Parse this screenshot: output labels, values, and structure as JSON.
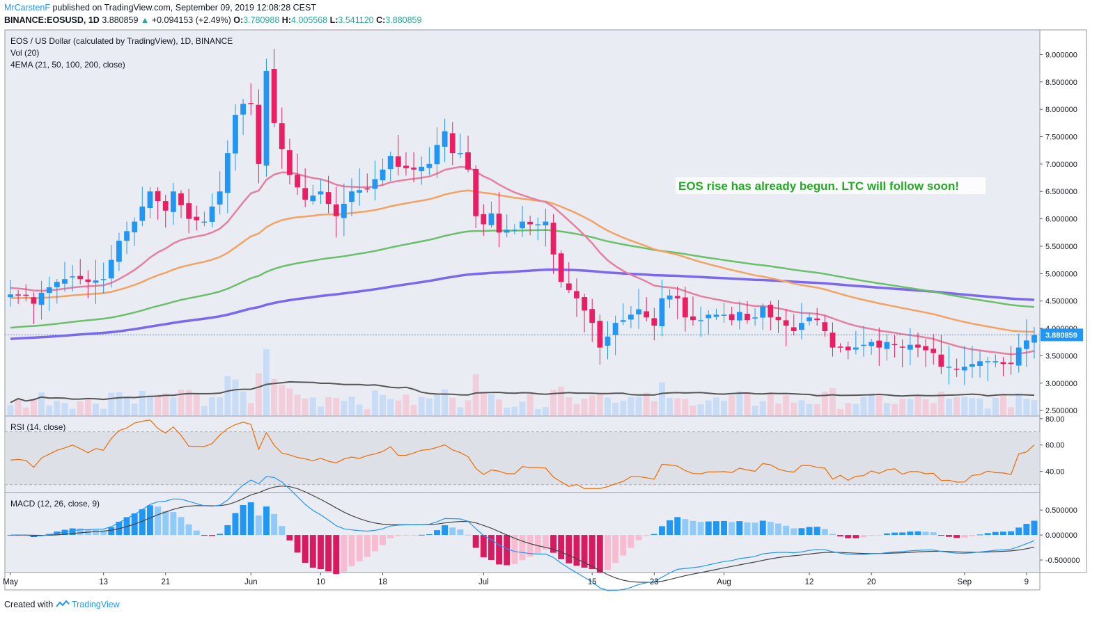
{
  "header": {
    "author": "MrCarstenF",
    "published": "published on TradingView.com, September 09, 2019 12:08:28 CEST",
    "symbol": "BINANCE:EOSUSD, 1D",
    "price": "3.880859",
    "change_arrow": "▲",
    "change": "+0.094153 (+2.49%)",
    "o_label": "O:",
    "o": "3.780988",
    "h_label": "H:",
    "h": "4.005568",
    "l_label": "L:",
    "l": "3.541120",
    "c_label": "C:",
    "c": "3.880859"
  },
  "footer": {
    "created_with": "Created with",
    "brand": "TradingView"
  },
  "colors": {
    "up": "#2196f3",
    "down": "#e91e63",
    "ema21": "#e57fa0",
    "ema50": "#f4a261",
    "ema100": "#6abf69",
    "ema200": "#7b68ee",
    "vol_ma": "#555555",
    "rsi": "#ef6c00",
    "macd": "#2196f3",
    "signal": "#444444",
    "annotation": "#22aa22",
    "pane_bg": "#e9ecf3"
  },
  "chart_data": [
    {
      "type": "candlestick",
      "title": "EOS / US Dollar (calculated by TradingView), 1D, BINANCE",
      "indicator_labels": [
        "Vol (20)",
        "4EMA (21, 50, 100, 200, close)"
      ],
      "annotation": "EOS rise has already begun. LTC will follow soon!",
      "current_price_label": "3.880859",
      "current_price": 3.880859,
      "x_ticks": [
        {
          "label": "May",
          "day": 0
        },
        {
          "label": "13",
          "day": 12
        },
        {
          "label": "21",
          "day": 20
        },
        {
          "label": "Jun",
          "day": 31
        },
        {
          "label": "10",
          "day": 40
        },
        {
          "label": "18",
          "day": 48
        },
        {
          "label": "Jul",
          "day": 61
        },
        {
          "label": "15",
          "day": 75
        },
        {
          "label": "23",
          "day": 83
        },
        {
          "label": "Aug",
          "day": 92
        },
        {
          "label": "12",
          "day": 103
        },
        {
          "label": "20",
          "day": 111
        },
        {
          "label": "Sep",
          "day": 123
        },
        {
          "label": "9",
          "day": 131
        }
      ],
      "y_ticks": [
        9.0,
        8.5,
        8.0,
        7.5,
        7.0,
        6.5,
        6.0,
        5.5,
        5.0,
        4.5,
        4.0,
        3.5,
        3.0,
        2.5
      ],
      "y_tick_labels": [
        "9.000000",
        "8.500000",
        "8.000000",
        "7.500000",
        "7.000000",
        "6.500000",
        "6.000000",
        "5.500000",
        "5.000000",
        "4.500000",
        "4.000000",
        "3.500000",
        "3.000000",
        "2.500000"
      ],
      "y_range": [
        2.4,
        9.45
      ],
      "close_anchors": [
        [
          0,
          4.62
        ],
        [
          2,
          4.6
        ],
        [
          3,
          4.45
        ],
        [
          4,
          4.65
        ],
        [
          6,
          4.85
        ],
        [
          8,
          4.95
        ],
        [
          10,
          4.85
        ],
        [
          12,
          4.9
        ],
        [
          14,
          5.6
        ],
        [
          16,
          5.95
        ],
        [
          18,
          6.5
        ],
        [
          20,
          6.15
        ],
        [
          21,
          6.5
        ],
        [
          23,
          6.0
        ],
        [
          25,
          5.95
        ],
        [
          27,
          6.5
        ],
        [
          29,
          7.9
        ],
        [
          30,
          8.1
        ],
        [
          31,
          8.1
        ],
        [
          32,
          7.0
        ],
        [
          33,
          8.7
        ],
        [
          34,
          7.75
        ],
        [
          36,
          6.8
        ],
        [
          38,
          6.35
        ],
        [
          40,
          6.5
        ],
        [
          42,
          6.05
        ],
        [
          44,
          6.5
        ],
        [
          46,
          6.55
        ],
        [
          48,
          6.9
        ],
        [
          49,
          7.15
        ],
        [
          50,
          6.95
        ],
        [
          52,
          6.9
        ],
        [
          54,
          7.0
        ],
        [
          55,
          7.35
        ],
        [
          56,
          7.6
        ],
        [
          57,
          7.2
        ],
        [
          58,
          7.2
        ],
        [
          59,
          6.9
        ],
        [
          60,
          6.05
        ],
        [
          61,
          5.9
        ],
        [
          62,
          6.1
        ],
        [
          63,
          5.75
        ],
        [
          64,
          5.8
        ],
        [
          65,
          5.8
        ],
        [
          66,
          5.95
        ],
        [
          67,
          5.9
        ],
        [
          68,
          5.9
        ],
        [
          69,
          5.95
        ],
        [
          70,
          5.35
        ],
        [
          71,
          4.85
        ],
        [
          73,
          4.55
        ],
        [
          75,
          4.1
        ],
        [
          76,
          3.65
        ],
        [
          77,
          3.85
        ],
        [
          78,
          4.1
        ],
        [
          79,
          4.15
        ],
        [
          80,
          4.25
        ],
        [
          81,
          4.35
        ],
        [
          83,
          4.05
        ],
        [
          84,
          4.55
        ],
        [
          85,
          4.6
        ],
        [
          86,
          4.55
        ],
        [
          87,
          4.2
        ],
        [
          88,
          4.15
        ],
        [
          89,
          4.15
        ],
        [
          90,
          4.25
        ],
        [
          92,
          4.25
        ],
        [
          93,
          4.15
        ],
        [
          94,
          4.3
        ],
        [
          95,
          4.15
        ],
        [
          96,
          4.2
        ],
        [
          97,
          4.4
        ],
        [
          98,
          4.2
        ],
        [
          99,
          4.15
        ],
        [
          100,
          4.05
        ],
        [
          101,
          3.95
        ],
        [
          102,
          4.1
        ],
        [
          103,
          4.2
        ],
        [
          104,
          4.15
        ],
        [
          105,
          3.95
        ],
        [
          106,
          3.65
        ],
        [
          107,
          3.65
        ],
        [
          108,
          3.6
        ],
        [
          109,
          3.65
        ],
        [
          110,
          3.7
        ],
        [
          111,
          3.75
        ],
        [
          112,
          3.65
        ],
        [
          113,
          3.75
        ],
        [
          114,
          3.7
        ],
        [
          115,
          3.65
        ],
        [
          116,
          3.7
        ],
        [
          117,
          3.65
        ],
        [
          118,
          3.6
        ],
        [
          119,
          3.55
        ],
        [
          120,
          3.3
        ],
        [
          121,
          3.3
        ],
        [
          122,
          3.25
        ],
        [
          123,
          3.3
        ],
        [
          124,
          3.35
        ],
        [
          125,
          3.4
        ],
        [
          126,
          3.4
        ],
        [
          127,
          3.4
        ],
        [
          128,
          3.35
        ],
        [
          129,
          3.35
        ],
        [
          130,
          3.65
        ],
        [
          131,
          3.78
        ],
        [
          132,
          3.880859
        ]
      ],
      "volume_scale": "shown as relative bars in the lower part of the price pane",
      "series": [
        {
          "name": "EMA 21"
        },
        {
          "name": "EMA 50"
        },
        {
          "name": "EMA 100"
        },
        {
          "name": "EMA 200"
        },
        {
          "name": "Vol MA 20"
        }
      ],
      "ema_seed": {
        "ema21": 4.75,
        "ema50": 4.55,
        "ema100": 4.0,
        "ema200": 3.8
      }
    },
    {
      "type": "line",
      "title": "RSI (14, close)",
      "y_ticks": [
        80,
        60,
        40
      ],
      "y_tick_labels": [
        "80.00",
        "60.00",
        "40.00"
      ],
      "y_range": [
        24,
        82
      ],
      "bands": [
        70,
        30
      ]
    },
    {
      "type": "line+bar",
      "title": "MACD (12, 26, close, 9)",
      "y_ticks": [
        0.5,
        0.0,
        -0.5
      ],
      "y_tick_labels": [
        "0.500000",
        "0.000000",
        "-0.500000"
      ],
      "y_range": [
        -0.75,
        0.85
      ]
    }
  ]
}
